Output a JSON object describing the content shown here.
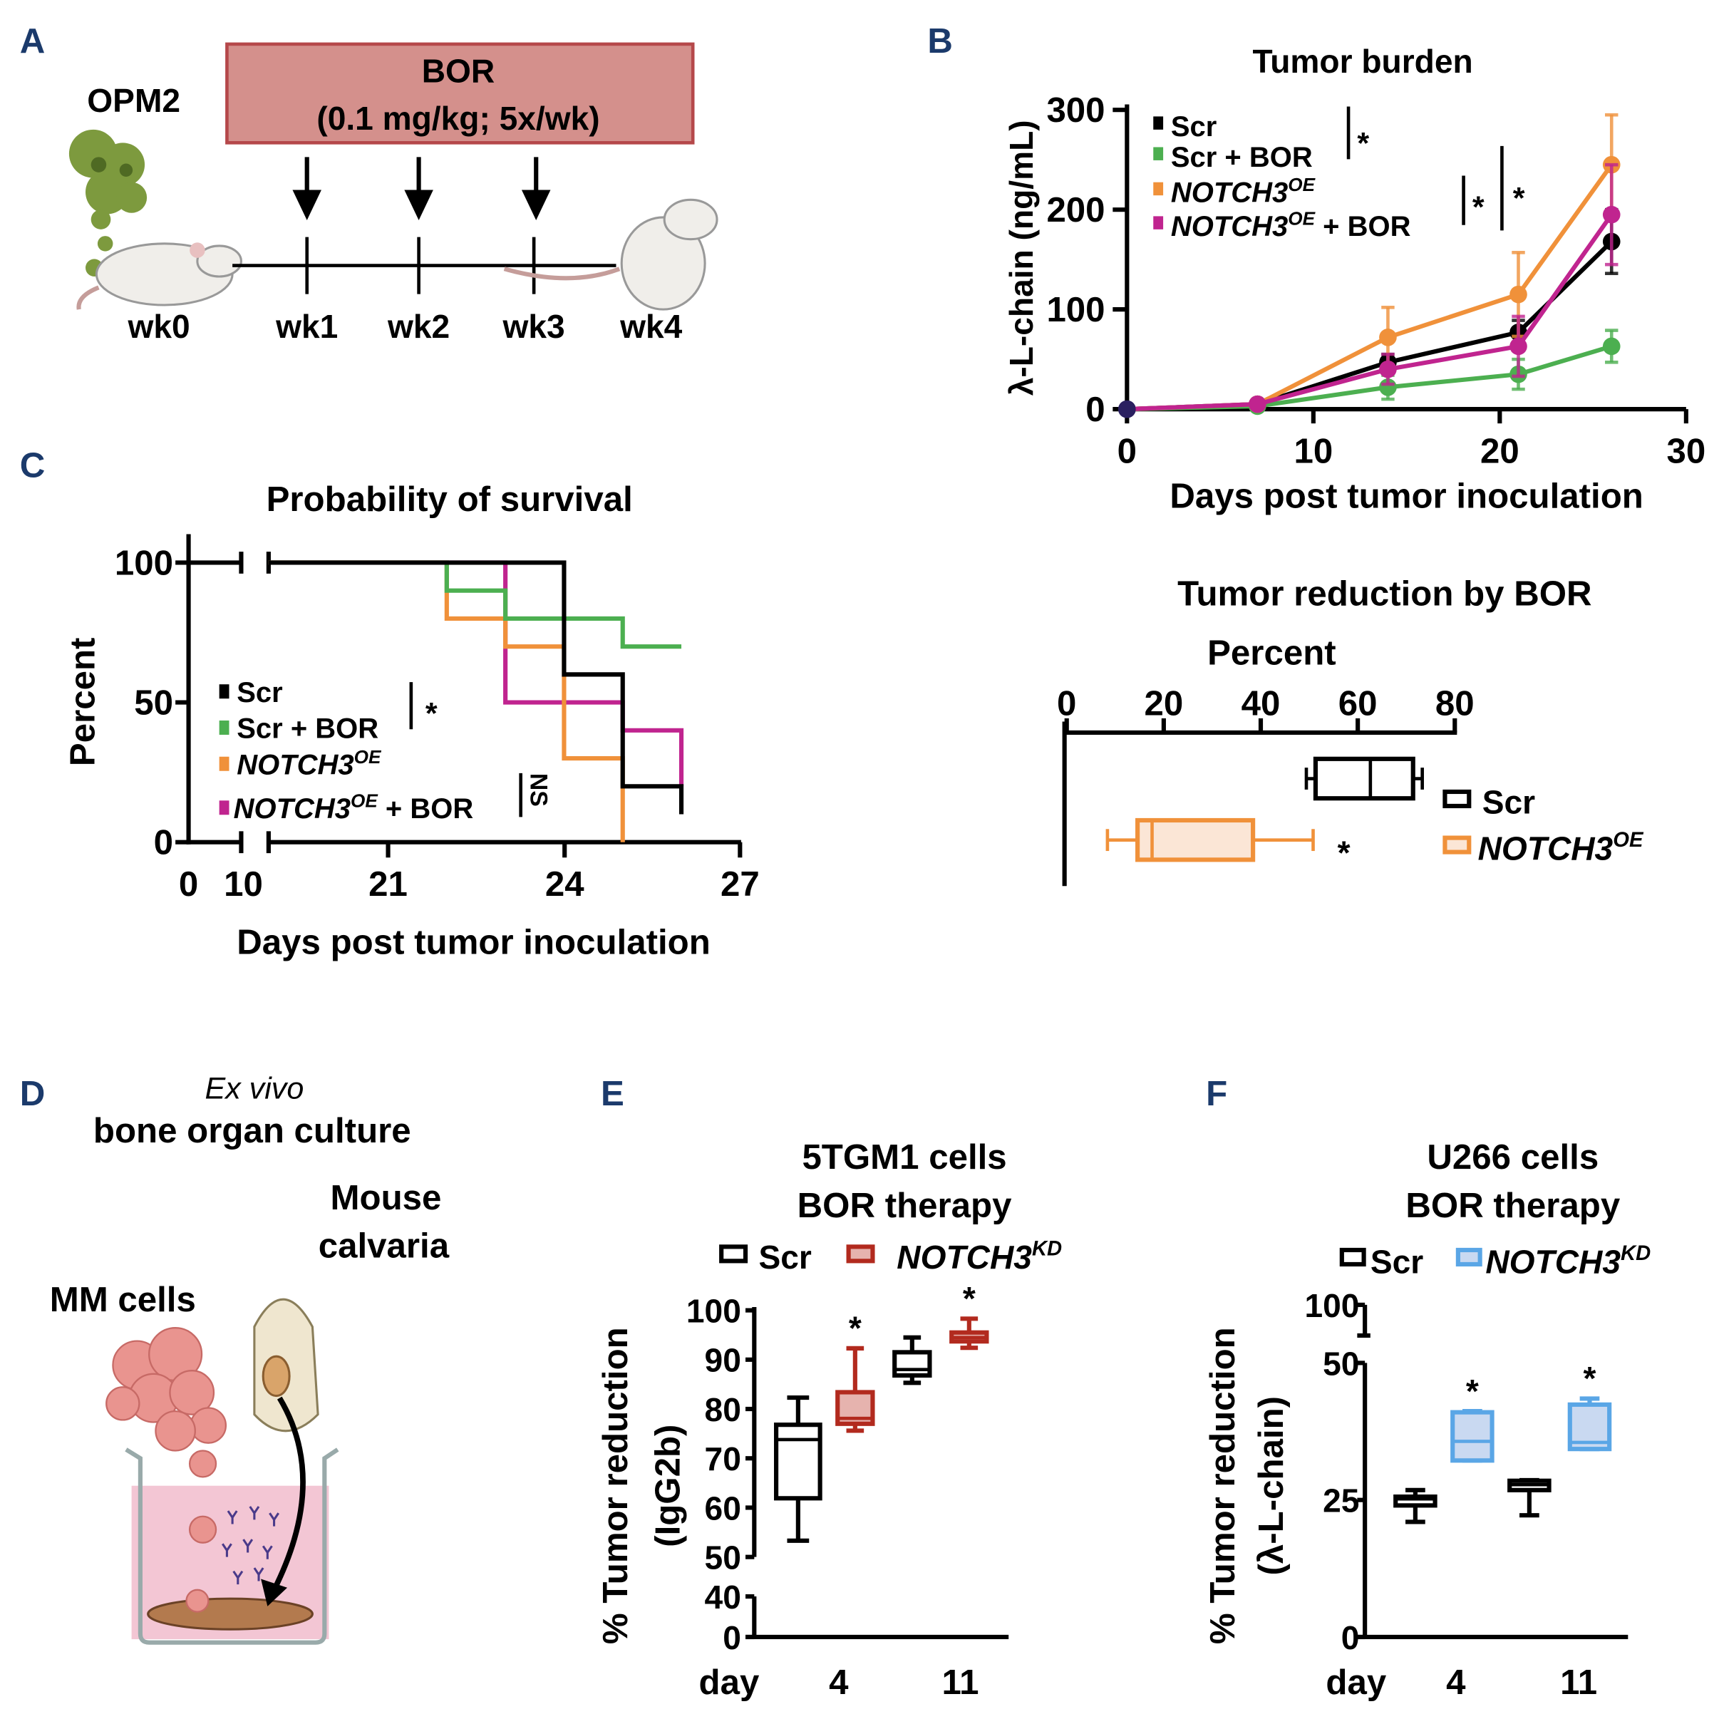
{
  "panel_letters": {
    "a": "A",
    "b": "B",
    "c": "C",
    "d": "D",
    "e": "E",
    "f": "F"
  },
  "colors": {
    "scr": "#000000",
    "scr_bor": "#4caf50",
    "notch_oe": "#f0913a",
    "notch_oe_bor": "#c0248f",
    "kd_red": "#b22a1e",
    "kd_red_fill": "#e6b3ae",
    "kd_blue": "#5aa6e6",
    "kd_blue_fill": "#c9d9f1",
    "oe_fill": "#fbe6d6",
    "letter": "#1b3a6b",
    "bor_box": "#d4908c"
  },
  "panel_a": {
    "cell_line": "OPM2",
    "treatment_line1": "BOR",
    "treatment_line2": "(0.1 mg/kg; 5x/wk)",
    "weeks": [
      "wk0",
      "wk1",
      "wk2",
      "wk3",
      "wk4"
    ]
  },
  "panel_d": {
    "title_italic": "Ex vivo",
    "title": "bone organ culture",
    "calvaria_line1": "Mouse",
    "calvaria_line2": "calvaria",
    "cells_label": "MM cells"
  },
  "legend": {
    "scr": "Scr",
    "scr_bor": "Scr + BOR",
    "notch": "NOTCH3",
    "oe": "OE",
    "kd": "KD",
    "plus_bor": " + BOR",
    "star": "*",
    "ns": "NS"
  },
  "chart_data": [
    {
      "id": "tumor_burden",
      "type": "line",
      "title": "Tumor burden",
      "xlabel": "Days post tumor inoculation",
      "ylabel": "λ-L-chain (ng/mL)",
      "xlim": [
        0,
        30
      ],
      "ylim": [
        0,
        300
      ],
      "xticks": [
        0,
        10,
        20,
        30
      ],
      "yticks": [
        0,
        100,
        200,
        300
      ],
      "series": [
        {
          "name": "Scr",
          "color": "#000000",
          "x": [
            0,
            7,
            14,
            21,
            26
          ],
          "y": [
            0,
            5,
            47,
            77,
            168
          ],
          "err": [
            0,
            2,
            8,
            12,
            32
          ]
        },
        {
          "name": "Scr + BOR",
          "color": "#4caf50",
          "x": [
            0,
            7,
            14,
            21,
            26
          ],
          "y": [
            0,
            3,
            22,
            35,
            63
          ],
          "err": [
            0,
            2,
            12,
            15,
            16
          ]
        },
        {
          "name": "NOTCH3OE",
          "color": "#f0913a",
          "x": [
            0,
            7,
            14,
            21,
            26
          ],
          "y": [
            0,
            5,
            72,
            115,
            245
          ],
          "err": [
            0,
            2,
            30,
            42,
            50
          ]
        },
        {
          "name": "NOTCH3OE + BOR",
          "color": "#c0248f",
          "x": [
            0,
            7,
            14,
            21,
            26
          ],
          "y": [
            0,
            5,
            40,
            63,
            195
          ],
          "err": [
            0,
            2,
            15,
            30,
            50
          ]
        }
      ],
      "annotations": [
        "*",
        "*",
        "*"
      ]
    },
    {
      "id": "survival",
      "type": "line",
      "title": "Probability of survival",
      "xlabel": "Days post tumor inoculation",
      "ylabel": "Percent",
      "xticks": [
        "0",
        "10",
        "21",
        "24",
        "27"
      ],
      "yticks": [
        0,
        50,
        100
      ],
      "series": [
        {
          "name": "Scr",
          "color": "#000000",
          "steps": [
            [
              10,
              100
            ],
            [
              24,
              60
            ],
            [
              25,
              20
            ],
            [
              26,
              20
            ]
          ],
          "end_drop": 10
        },
        {
          "name": "Scr + BOR",
          "color": "#4caf50",
          "steps": [
            [
              10,
              100
            ],
            [
              22,
              90
            ],
            [
              23,
              80
            ],
            [
              25,
              70
            ],
            [
              26,
              70
            ]
          ]
        },
        {
          "name": "NOTCH3OE",
          "color": "#f0913a",
          "steps": [
            [
              10,
              100
            ],
            [
              22,
              80
            ],
            [
              23,
              70
            ],
            [
              24,
              30
            ],
            [
              25,
              0
            ]
          ]
        },
        {
          "name": "NOTCH3OE + BOR",
          "color": "#c0248f",
          "steps": [
            [
              10,
              100
            ],
            [
              23,
              50
            ],
            [
              25,
              40
            ],
            [
              26,
              40
            ]
          ],
          "end_drop": 20
        }
      ],
      "annotations": [
        "*",
        "NS"
      ]
    },
    {
      "id": "tumor_reduction_bor",
      "type": "box",
      "title": "Tumor reduction by BOR",
      "xlabel": "Percent",
      "xlim": [
        0,
        80
      ],
      "xticks": [
        0,
        20,
        40,
        60,
        80
      ],
      "boxes": [
        {
          "name": "Scr",
          "min": 49.4,
          "q1": 51.3,
          "median": 62.6,
          "q3": 71.4,
          "max": 73.3
        },
        {
          "name": "NOTCH3OE",
          "min": 8.4,
          "q1": 14.6,
          "median": 17.6,
          "q3": 38.4,
          "max": 50.8,
          "annotation": "*"
        }
      ]
    },
    {
      "id": "5tgm1",
      "type": "box",
      "title_line1": "5TGM1 cells",
      "title_line2": "BOR therapy",
      "ylabel_line1": "% Tumor reduction",
      "ylabel_line2": "(IgG2b)",
      "xlabel": "day",
      "categories": [
        "4",
        "11"
      ],
      "yticks": [
        0,
        40,
        50,
        60,
        70,
        80,
        90,
        100
      ],
      "boxes": [
        {
          "name": "Scr",
          "day": "4",
          "min": 53.3,
          "q1": 61.9,
          "median": 73.8,
          "q3": 76.8,
          "max": 82.3
        },
        {
          "name": "NOTCH3KD",
          "day": "4",
          "min": 75.6,
          "q1": 77,
          "median": 78.1,
          "q3": 83.4,
          "max": 92.3,
          "annotation": "*"
        },
        {
          "name": "Scr",
          "day": "11",
          "min": 85.3,
          "q1": 86.8,
          "median": 88,
          "q3": 91.5,
          "max": 94.5
        },
        {
          "name": "NOTCH3KD",
          "day": "11",
          "min": 92.4,
          "q1": 93.7,
          "median": 94.5,
          "q3": 95.5,
          "max": 98.3,
          "annotation": "*"
        }
      ]
    },
    {
      "id": "u266",
      "type": "box",
      "title_line1": "U266 cells",
      "title_line2": "BOR therapy",
      "ylabel_line1": "% Tumor reduction",
      "ylabel_line2": "(λ-L-chain)",
      "xlabel": "day",
      "categories": [
        "4",
        "11"
      ],
      "yticks": [
        0,
        25,
        50,
        100
      ],
      "boxes": [
        {
          "name": "Scr",
          "day": "4",
          "min": 21,
          "q1": 24,
          "median": 25.2,
          "q3": 25.6,
          "max": 26.8
        },
        {
          "name": "NOTCH3KD",
          "day": "4",
          "min": 32.2,
          "q1": 32.2,
          "median": 35.7,
          "q3": 41,
          "max": 41.2,
          "annotation": "*"
        },
        {
          "name": "Scr",
          "day": "11",
          "min": 22.2,
          "q1": 26.8,
          "median": 27.8,
          "q3": 28.5,
          "max": 28.6
        },
        {
          "name": "NOTCH3KD",
          "day": "11",
          "min": 34.3,
          "q1": 34.3,
          "median": 35.5,
          "q3": 42.4,
          "max": 43.5,
          "annotation": "*"
        }
      ]
    }
  ]
}
